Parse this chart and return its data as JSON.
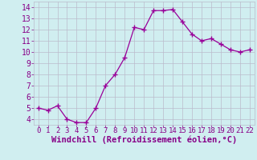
{
  "x": [
    0,
    1,
    2,
    3,
    4,
    5,
    6,
    7,
    8,
    9,
    10,
    11,
    12,
    13,
    14,
    15,
    16,
    17,
    18,
    19,
    20,
    21,
    22
  ],
  "y": [
    5.0,
    4.8,
    5.2,
    4.0,
    3.7,
    3.7,
    5.0,
    7.0,
    8.0,
    9.5,
    12.2,
    12.0,
    13.7,
    13.7,
    13.8,
    12.7,
    11.6,
    11.0,
    11.2,
    10.7,
    10.2,
    10.0,
    10.2
  ],
  "line_color": "#990099",
  "marker_color": "#990099",
  "bg_color": "#d0eef0",
  "grid_color": "#bbbbcc",
  "xlabel": "Windchill (Refroidissement éolien,°C)",
  "ylim": [
    3.5,
    14.5
  ],
  "yticks": [
    4,
    5,
    6,
    7,
    8,
    9,
    10,
    11,
    12,
    13,
    14
  ],
  "xticks": [
    0,
    1,
    2,
    3,
    4,
    5,
    6,
    7,
    8,
    9,
    10,
    11,
    12,
    13,
    14,
    15,
    16,
    17,
    18,
    19,
    20,
    21,
    22
  ],
  "tick_color": "#880088",
  "xlabel_color": "#880088",
  "xlabel_fontsize": 7.5,
  "ytick_fontsize": 7,
  "xtick_fontsize": 6.5
}
